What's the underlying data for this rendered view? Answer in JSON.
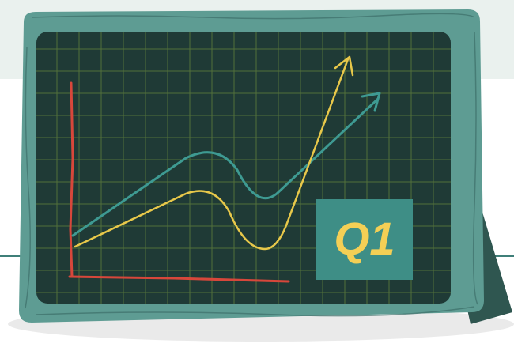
{
  "illustration": {
    "badge_label": "Q1",
    "icon": "growth-chart-board-icon"
  },
  "colors": {
    "background": "#ffffff",
    "header_band": "#eaf1ee",
    "floor_line": "#3f7f79",
    "frame": "#5e9c93",
    "frame_dark": "#3d6f69",
    "board": "#1f3a36",
    "grid": "#5c7a3c",
    "axis": "#d7473b",
    "teal_line": "#3e9a92",
    "yellow_line": "#e8c84a",
    "badge_bg": "#3e8e86",
    "badge_text": "#f4cf55",
    "stand": "#2f5650"
  }
}
